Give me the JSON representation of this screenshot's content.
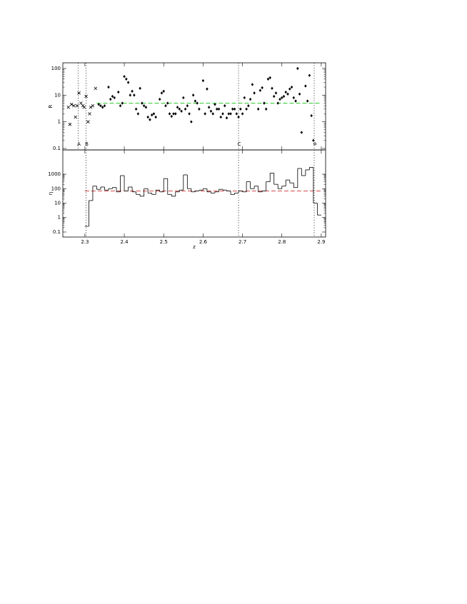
{
  "chart_data": [
    {
      "type": "scatter",
      "y_label": "R",
      "log_y": true,
      "xlim": [
        2.244,
        2.911
      ],
      "ylim": [
        0.088,
        163
      ],
      "yticks": [
        0.1,
        1,
        10,
        100
      ],
      "xticks": [
        2.3,
        2.4,
        2.5,
        2.6,
        2.7,
        2.8,
        2.9
      ],
      "series": [
        {
          "marker": "cross",
          "color": "#000000",
          "x": [
            2.258,
            2.262,
            2.266,
            2.272,
            2.276,
            2.28,
            2.285,
            2.29,
            2.295,
            2.298,
            2.303,
            2.308,
            2.312,
            2.315,
            2.32,
            2.327
          ],
          "values": [
            3.5,
            0.8,
            4.5,
            4,
            1.5,
            4,
            12,
            5,
            4,
            3.5,
            9,
            1,
            2,
            3.5,
            4,
            18
          ]
        },
        {
          "marker": "diamond",
          "color": "#000000",
          "x": [
            2.335,
            2.34,
            2.345,
            2.35,
            2.36,
            2.365,
            2.37,
            2.375,
            2.385,
            2.39,
            2.395,
            2.4,
            2.405,
            2.41,
            2.415,
            2.42,
            2.425,
            2.43,
            2.435,
            2.44,
            2.445,
            2.45,
            2.455,
            2.46,
            2.465,
            2.47,
            2.475,
            2.48,
            2.49,
            2.495,
            2.5,
            2.505,
            2.51,
            2.515,
            2.52,
            2.525,
            2.53,
            2.535,
            2.54,
            2.545,
            2.55,
            2.555,
            2.56,
            2.565,
            2.57,
            2.575,
            2.58,
            2.585,
            2.59,
            2.6,
            2.605,
            2.61,
            2.615,
            2.62,
            2.625,
            2.63,
            2.635,
            2.64,
            2.645,
            2.65,
            2.655,
            2.66,
            2.665,
            2.67,
            2.675,
            2.68,
            2.685,
            2.69,
            2.695,
            2.7,
            2.705,
            2.71,
            2.715,
            2.72,
            2.725,
            2.73,
            2.74,
            2.745,
            2.75,
            2.755,
            2.76,
            2.765,
            2.77,
            2.775,
            2.78,
            2.785,
            2.79,
            2.795,
            2.8,
            2.805,
            2.81,
            2.815,
            2.82,
            2.825,
            2.83,
            2.835,
            2.84,
            2.845,
            2.85,
            2.86,
            2.865,
            2.87,
            2.875,
            2.88
          ],
          "values": [
            4.5,
            4,
            3.5,
            4,
            20,
            7,
            9,
            8,
            13,
            4,
            5,
            50,
            40,
            30,
            10,
            14,
            10,
            3,
            2,
            18,
            5,
            4,
            3.5,
            1.5,
            1.2,
            1.8,
            2,
            1.5,
            7,
            12,
            14,
            4,
            5,
            2,
            1.6,
            2,
            2,
            3.5,
            3,
            2.5,
            8,
            3,
            4,
            2,
            1,
            10,
            6,
            5,
            3,
            35,
            2,
            17,
            3.5,
            2.5,
            2,
            4.5,
            3,
            3,
            1.5,
            2,
            4,
            1.4,
            2,
            2,
            3,
            3,
            2,
            1.5,
            3,
            2,
            8,
            3,
            4,
            7,
            25,
            12,
            3,
            15,
            19,
            5,
            3,
            40,
            45,
            18,
            9,
            12,
            5,
            7,
            8,
            9,
            13,
            11,
            17,
            20,
            8,
            6,
            100,
            11,
            0.4,
            22,
            6,
            55,
            1.7,
            0.2
          ]
        }
      ],
      "reference_line": {
        "value": 5,
        "from": 2.33,
        "to": 2.9,
        "color": "#33cc33"
      },
      "markers": [
        {
          "x": 2.283,
          "label": "A"
        },
        {
          "x": 2.303,
          "label": "B"
        },
        {
          "x": 2.69,
          "label": "C"
        },
        {
          "x": 2.882,
          "label": "✡"
        }
      ]
    },
    {
      "type": "histogram",
      "y_label": "η",
      "x_label": "z",
      "log_y": true,
      "xlim": [
        2.244,
        2.911
      ],
      "ylim": [
        0.045,
        48000
      ],
      "yticks": [
        0.1,
        1,
        10,
        100,
        1000
      ],
      "xticks": [
        2.3,
        2.4,
        2.5,
        2.6,
        2.7,
        2.8,
        2.9
      ],
      "bins": [
        2.3,
        2.31,
        2.32,
        2.33,
        2.34,
        2.35,
        2.36,
        2.37,
        2.38,
        2.39,
        2.4,
        2.41,
        2.42,
        2.43,
        2.44,
        2.45,
        2.46,
        2.47,
        2.48,
        2.49,
        2.5,
        2.51,
        2.52,
        2.53,
        2.54,
        2.55,
        2.56,
        2.57,
        2.58,
        2.59,
        2.6,
        2.61,
        2.62,
        2.63,
        2.64,
        2.65,
        2.66,
        2.67,
        2.68,
        2.69,
        2.7,
        2.71,
        2.72,
        2.73,
        2.74,
        2.75,
        2.76,
        2.77,
        2.78,
        2.79,
        2.8,
        2.81,
        2.82,
        2.83,
        2.84,
        2.85,
        2.86,
        2.87,
        2.88,
        2.89,
        2.9
      ],
      "values": [
        0.25,
        15,
        150,
        90,
        130,
        80,
        100,
        120,
        60,
        800,
        70,
        130,
        60,
        40,
        30,
        100,
        50,
        40,
        80,
        60,
        500,
        40,
        30,
        60,
        80,
        900,
        100,
        60,
        70,
        80,
        100,
        60,
        50,
        60,
        90,
        80,
        70,
        40,
        50,
        70,
        60,
        300,
        100,
        150,
        60,
        70,
        300,
        1200,
        200,
        100,
        150,
        400,
        250,
        120,
        2500,
        800,
        2000,
        3000,
        10,
        1.5
      ],
      "color": "#000000",
      "reference_line": {
        "value": 70,
        "from": 2.3,
        "to": 2.9,
        "color": "#cc3333"
      },
      "markers": [
        {
          "x": 2.303
        },
        {
          "x": 2.69
        },
        {
          "x": 2.882
        }
      ]
    }
  ]
}
